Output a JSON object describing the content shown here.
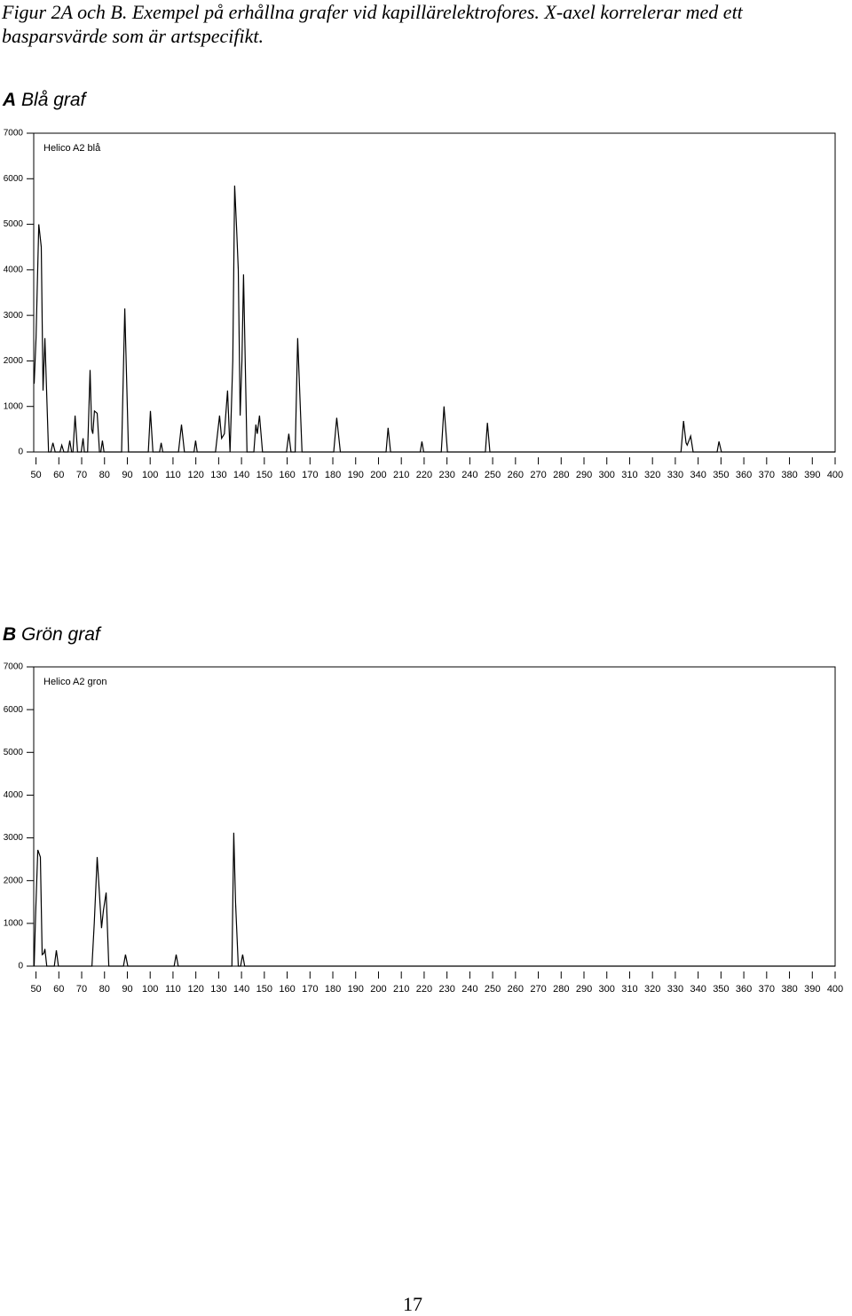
{
  "caption": "Figur 2A och B. Exempel på erhållna grafer vid kapillärelektrofores. X-axel korrelerar med ett basparsvärde som är artspecifikt.",
  "page_number": "17",
  "chart_data": [
    {
      "type": "line",
      "panel_label": "A",
      "title": "Blå graf",
      "trace_label": "Helico A2 blå",
      "color": "#000000",
      "xlim": [
        49,
        400
      ],
      "xticks": [
        50,
        60,
        70,
        80,
        90,
        100,
        110,
        120,
        130,
        140,
        150,
        160,
        170,
        180,
        190,
        200,
        210,
        220,
        230,
        240,
        250,
        260,
        270,
        280,
        290,
        300,
        310,
        320,
        330,
        340,
        350,
        360,
        370,
        380,
        390,
        400
      ],
      "ylim": [
        0,
        7000
      ],
      "yticks": [
        0,
        1000,
        2000,
        3000,
        4000,
        5000,
        6000,
        7000
      ],
      "x": [
        49.2,
        50,
        51.2,
        52.3,
        53.1,
        53.9,
        55.5,
        56.5,
        57.4,
        58.4,
        60.5,
        61.3,
        62.2,
        64,
        64.8,
        65.6,
        66.2,
        67.1,
        68.2,
        69.8,
        70.6,
        71.2,
        72.6,
        73.7,
        74.4,
        74.9,
        75.6,
        76.8,
        77.8,
        78.4,
        79.1,
        79.8,
        87.5,
        88.9,
        90.5,
        99.2,
        100.1,
        101.2,
        104.1,
        104.8,
        105.5,
        112.4,
        113.7,
        115,
        119.2,
        119.9,
        120.6,
        128.6,
        130.4,
        131.3,
        132.5,
        133.9,
        135,
        136.2,
        137.0,
        137.8,
        138.6,
        139.4,
        140.2,
        140.9,
        142.4,
        145.4,
        146.3,
        146.9,
        147.9,
        149.2,
        159.7,
        160.7,
        161.7,
        163.5,
        164.6,
        166.5,
        180.4,
        181.7,
        183.3,
        203.3,
        204.2,
        205.3,
        218.3,
        219,
        219.8,
        227.5,
        228.7,
        230.2,
        246.8,
        247.7,
        248.8,
        332.5,
        333.6,
        334.7,
        335.2,
        336.7,
        337.8,
        348.3,
        349.1,
        350.2,
        400
      ],
      "y": [
        1500,
        2500,
        5000,
        4500,
        1350,
        2500,
        0,
        0,
        200,
        0,
        0,
        150,
        0,
        0,
        250,
        0,
        0,
        800,
        0,
        0,
        300,
        0,
        0,
        1800,
        500,
        400,
        900,
        850,
        0,
        0,
        250,
        0,
        0,
        3150,
        0,
        0,
        900,
        0,
        0,
        200,
        0,
        0,
        600,
        0,
        0,
        250,
        0,
        0,
        800,
        300,
        400,
        1350,
        0,
        2000,
        5850,
        4950,
        4000,
        800,
        2000,
        3900,
        0,
        0,
        600,
        400,
        800,
        0,
        0,
        400,
        0,
        0,
        2500,
        0,
        0,
        750,
        0,
        0,
        530,
        0,
        0,
        230,
        0,
        0,
        1000,
        0,
        0,
        640,
        0,
        0,
        680,
        200,
        150,
        350,
        0,
        0,
        230,
        0,
        0
      ]
    },
    {
      "type": "line",
      "panel_label": "B",
      "title": "Grön graf",
      "trace_label": "Helico A2 gron",
      "color": "#000000",
      "xlim": [
        49,
        400
      ],
      "xticks": [
        50,
        60,
        70,
        80,
        90,
        100,
        110,
        120,
        130,
        140,
        150,
        160,
        170,
        180,
        190,
        200,
        210,
        220,
        230,
        240,
        250,
        260,
        270,
        280,
        290,
        300,
        310,
        320,
        330,
        340,
        350,
        360,
        370,
        380,
        390,
        400
      ],
      "ylim": [
        0,
        7000
      ],
      "yticks": [
        0,
        1000,
        2000,
        3000,
        4000,
        5000,
        6000,
        7000
      ],
      "x": [
        49.2,
        49.8,
        50.8,
        51.9,
        52.7,
        53.4,
        53.9,
        54.7,
        58,
        58.9,
        59.8,
        74.5,
        75.5,
        76.8,
        78.7,
        79.5,
        80.7,
        81.9,
        88.3,
        89.2,
        90.2,
        110.5,
        111.4,
        112.3,
        135.8,
        136.6,
        137.4,
        138.6,
        139.6,
        140.5,
        141.4,
        400
      ],
      "y": [
        0,
        1200,
        2720,
        2550,
        270,
        300,
        400,
        0,
        0,
        370,
        0,
        0,
        1000,
        2550,
        890,
        1300,
        1720,
        0,
        0,
        270,
        0,
        0,
        270,
        0,
        0,
        3120,
        1500,
        0,
        0,
        270,
        0,
        0
      ]
    }
  ]
}
